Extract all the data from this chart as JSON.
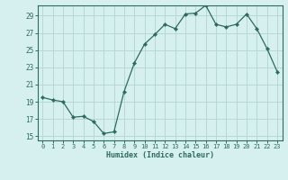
{
  "x": [
    0,
    1,
    2,
    3,
    4,
    5,
    6,
    7,
    8,
    9,
    10,
    11,
    12,
    13,
    14,
    15,
    16,
    17,
    18,
    19,
    20,
    21,
    22,
    23
  ],
  "y": [
    19.5,
    19.2,
    19.0,
    17.2,
    17.3,
    16.7,
    15.3,
    15.5,
    20.2,
    23.5,
    25.7,
    26.8,
    28.0,
    27.5,
    29.2,
    29.3,
    30.2,
    28.0,
    27.7,
    28.0,
    29.2,
    27.5,
    25.2,
    22.5
  ],
  "line_color": "#2d6b5e",
  "marker": "D",
  "marker_size": 2.2,
  "bg_color": "#d6f0ef",
  "grid_color": "#b8d8d5",
  "xlabel": "Humidex (Indice chaleur)",
  "yticks": [
    15,
    17,
    19,
    21,
    23,
    25,
    27,
    29
  ],
  "xticks": [
    0,
    1,
    2,
    3,
    4,
    5,
    6,
    7,
    8,
    9,
    10,
    11,
    12,
    13,
    14,
    15,
    16,
    17,
    18,
    19,
    20,
    21,
    22,
    23
  ],
  "xlim": [
    -0.5,
    23.5
  ],
  "ylim": [
    14.5,
    30.2
  ],
  "tick_color": "#2d6b5e",
  "label_color": "#2d6b5e"
}
